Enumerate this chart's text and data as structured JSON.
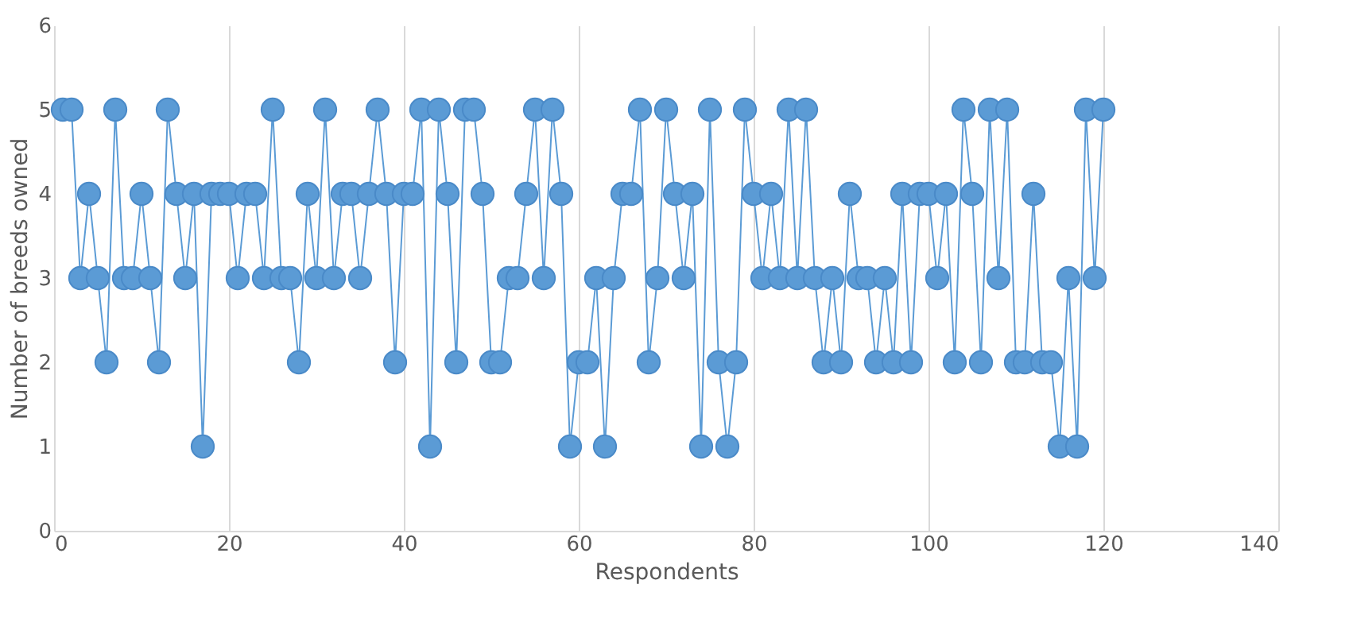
{
  "chart_data": {
    "type": "line",
    "marker": "circle",
    "line_style": "solid",
    "xlabel": "Respondents",
    "ylabel": "Number of breeds owned",
    "x": [
      1,
      2,
      3,
      4,
      5,
      6,
      7,
      8,
      9,
      10,
      11,
      12,
      13,
      14,
      15,
      16,
      17,
      18,
      19,
      20,
      21,
      22,
      23,
      24,
      25,
      26,
      27,
      28,
      29,
      30,
      31,
      32,
      33,
      34,
      35,
      36,
      37,
      38,
      39,
      40,
      41,
      42,
      43,
      44,
      45,
      46,
      47,
      48,
      49,
      50,
      51,
      52,
      53,
      54,
      55,
      56,
      57,
      58,
      59,
      60,
      61,
      62,
      63,
      64,
      65,
      66,
      67,
      68,
      69,
      70,
      71,
      72,
      73,
      74,
      75,
      76,
      77,
      78,
      79,
      80,
      81,
      82,
      83,
      84,
      85,
      86,
      87,
      88,
      89,
      90,
      91,
      92,
      93,
      94,
      95,
      96,
      97,
      98,
      99,
      100,
      101,
      102,
      103,
      104,
      105,
      106,
      107,
      108,
      109,
      110,
      111,
      112,
      113,
      114,
      115,
      116,
      117,
      118,
      119,
      120
    ],
    "series": [
      {
        "color": "#5b9bd5",
        "values": [
          5,
          5,
          3,
          4,
          3,
          2,
          5,
          3,
          3,
          4,
          3,
          2,
          5,
          4,
          3,
          4,
          1,
          4,
          4,
          4,
          3,
          4,
          4,
          3,
          5,
          3,
          3,
          2,
          4,
          3,
          5,
          3,
          4,
          4,
          3,
          4,
          5,
          4,
          2,
          4,
          4,
          5,
          1,
          5,
          4,
          2,
          5,
          5,
          4,
          2,
          2,
          3,
          3,
          4,
          5,
          3,
          5,
          4,
          1,
          2,
          2,
          3,
          1,
          3,
          4,
          4,
          5,
          2,
          3,
          5,
          4,
          3,
          4,
          1,
          5,
          2,
          1,
          2,
          5,
          4,
          3,
          4,
          3,
          5,
          3,
          5,
          3,
          2,
          3,
          2,
          4,
          3,
          3,
          2,
          3,
          2,
          4,
          2,
          4,
          4,
          3,
          4,
          2,
          5,
          4,
          2,
          5,
          3,
          5,
          2,
          2,
          4,
          2,
          2,
          1,
          3,
          1,
          5,
          3,
          5
        ]
      }
    ],
    "xlim": [
      0,
      140
    ],
    "xticks": [
      0,
      20,
      40,
      60,
      80,
      100,
      120,
      140
    ],
    "ylim": [
      0,
      6
    ],
    "yticks": [
      0,
      1,
      2,
      3,
      4,
      5,
      6
    ],
    "grid": "x"
  }
}
